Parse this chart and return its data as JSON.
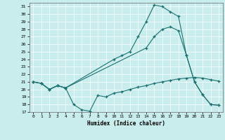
{
  "xlabel": "Humidex (Indice chaleur)",
  "xticks": [
    0,
    1,
    2,
    3,
    4,
    5,
    6,
    7,
    8,
    9,
    10,
    11,
    12,
    13,
    14,
    15,
    16,
    17,
    18,
    19,
    20,
    21,
    22,
    23
  ],
  "yticks": [
    17,
    18,
    19,
    20,
    21,
    22,
    23,
    24,
    25,
    26,
    27,
    28,
    29,
    30,
    31
  ],
  "bg_color": "#c9ecec",
  "line_color": "#1a7070",
  "grid_color": "#ffffff",
  "top_x": [
    0,
    1,
    2,
    3,
    4,
    10,
    11,
    12,
    13,
    14,
    15,
    16,
    17,
    18,
    19,
    20,
    21,
    22,
    23
  ],
  "top_y": [
    21.0,
    20.8,
    20.0,
    20.5,
    20.2,
    24.0,
    24.5,
    25.0,
    27.0,
    29.0,
    31.2,
    31.0,
    30.3,
    29.7,
    24.5,
    21.0,
    19.3,
    18.0,
    17.9
  ],
  "mid_x": [
    0,
    1,
    2,
    3,
    4,
    14,
    15,
    16,
    17,
    18,
    19,
    20,
    21,
    22,
    23
  ],
  "mid_y": [
    21.0,
    20.8,
    20.0,
    20.5,
    20.2,
    25.5,
    27.0,
    28.0,
    28.3,
    27.8,
    24.5,
    21.0,
    19.3,
    18.0,
    17.9
  ],
  "bot_x": [
    0,
    1,
    2,
    3,
    4,
    5,
    6,
    7,
    8,
    9,
    10,
    11,
    12,
    13,
    14,
    15,
    16,
    17,
    18,
    19,
    20,
    21,
    22,
    23
  ],
  "bot_y": [
    21.0,
    20.8,
    20.0,
    20.5,
    20.2,
    18.0,
    17.3,
    17.1,
    19.2,
    19.0,
    19.5,
    19.7,
    20.0,
    20.3,
    20.5,
    20.8,
    21.0,
    21.2,
    21.4,
    21.5,
    21.6,
    21.5,
    21.3,
    21.1
  ]
}
